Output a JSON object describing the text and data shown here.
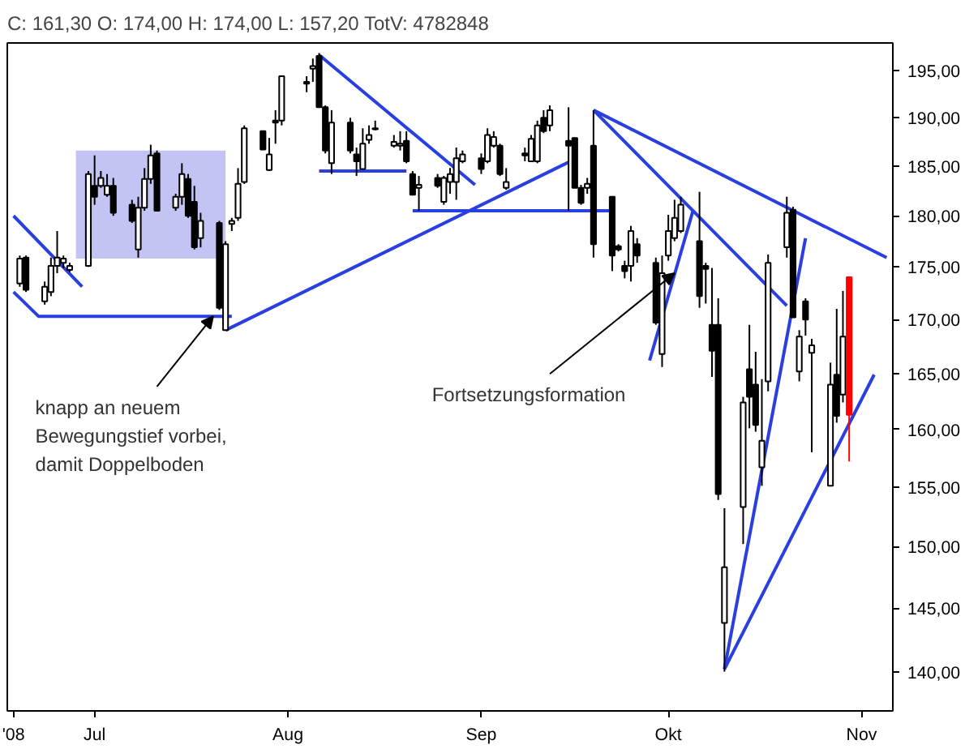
{
  "chart_data": {
    "type": "candlestick",
    "title": "C: 161,30 O: 174,00 H: 174,00 L: 157,20 TotV: 4782848",
    "x": [
      "2008-06-19",
      "2008-06-20",
      "2008-06-23",
      "2008-06-24",
      "2008-06-25",
      "2008-06-26",
      "2008-06-27",
      "2008-06-30",
      "2008-07-01",
      "2008-07-02",
      "2008-07-03",
      "2008-07-04",
      "2008-07-07",
      "2008-07-08",
      "2008-07-09",
      "2008-07-10",
      "2008-07-11",
      "2008-07-14",
      "2008-07-15",
      "2008-07-16",
      "2008-07-17",
      "2008-07-18",
      "2008-07-21",
      "2008-07-22",
      "2008-07-23",
      "2008-07-24",
      "2008-07-25",
      "2008-07-28",
      "2008-07-29",
      "2008-07-30",
      "2008-07-31",
      "2008-08-04",
      "2008-08-05",
      "2008-08-06",
      "2008-08-07",
      "2008-08-08",
      "2008-08-11",
      "2008-08-12",
      "2008-08-13",
      "2008-08-14",
      "2008-08-15",
      "2008-08-18",
      "2008-08-19",
      "2008-08-20",
      "2008-08-21",
      "2008-08-22",
      "2008-08-25",
      "2008-08-26",
      "2008-08-27",
      "2008-08-28",
      "2008-08-29",
      "2008-09-01",
      "2008-09-02",
      "2008-09-03",
      "2008-09-04",
      "2008-09-05",
      "2008-09-08",
      "2008-09-09",
      "2008-09-10",
      "2008-09-11",
      "2008-09-12",
      "2008-09-15",
      "2008-09-16",
      "2008-09-17",
      "2008-09-18",
      "2008-09-19",
      "2008-09-22",
      "2008-09-23",
      "2008-09-24",
      "2008-09-25",
      "2008-09-26",
      "2008-09-29",
      "2008-09-30",
      "2008-10-01",
      "2008-10-02",
      "2008-10-03",
      "2008-10-06",
      "2008-10-07",
      "2008-10-08",
      "2008-10-09",
      "2008-10-10",
      "2008-10-13",
      "2008-10-14",
      "2008-10-15",
      "2008-10-16",
      "2008-10-17",
      "2008-10-20",
      "2008-10-21",
      "2008-10-22",
      "2008-10-23",
      "2008-10-24",
      "2008-10-27",
      "2008-10-28",
      "2008-10-29",
      "2008-10-30"
    ],
    "ohlc": [
      [
        173.4,
        176.1,
        173.1,
        175.8
      ],
      [
        175.9,
        176.1,
        172.6,
        172.8
      ],
      [
        171.7,
        173.6,
        171.4,
        173.1
      ],
      [
        172.6,
        175.9,
        172.2,
        175.1
      ],
      [
        175.1,
        178.5,
        174.4,
        175.9
      ],
      [
        175.4,
        176.1,
        174.9,
        175.8
      ],
      [
        174.7,
        175.4,
        174.5,
        175.1
      ],
      [
        175.1,
        184.5,
        175,
        184.2
      ],
      [
        183,
        186.1,
        181.1,
        181.9
      ],
      [
        183,
        184.5,
        182.8,
        183.8
      ],
      [
        182.1,
        184.2,
        181.9,
        183
      ],
      [
        183,
        183.8,
        180,
        180.3
      ],
      [
        181.1,
        181.6,
        179.3,
        179.5
      ],
      [
        176.7,
        181.9,
        175.9,
        180.8
      ],
      [
        180.8,
        184.8,
        180.5,
        183.7
      ],
      [
        183.7,
        187.2,
        183.2,
        186.1
      ],
      [
        186.3,
        186.6,
        180.5,
        180.5
      ],
      [
        180.8,
        182.2,
        180.5,
        181.9
      ],
      [
        181.9,
        185.3,
        181.1,
        184.2
      ],
      [
        183.7,
        184.2,
        179.8,
        180
      ],
      [
        181.4,
        183,
        176.7,
        176.9
      ],
      [
        177.8,
        180.3,
        176.9,
        179.5
      ],
      [
        179.3,
        179.5,
        170.9,
        171.1
      ],
      [
        169,
        177.5,
        169,
        177.2
      ],
      [
        179.2,
        179.8,
        178.5,
        179.5
      ],
      [
        179.8,
        184.8,
        179.5,
        183.2
      ],
      [
        183.4,
        189.2,
        183.2,
        188.9
      ],
      [
        188.6,
        188.6,
        186.7,
        186.7
      ],
      [
        184.6,
        187.9,
        184.5,
        186.2
      ],
      [
        189.7,
        190.8,
        187.3,
        189.5
      ],
      [
        189.7,
        194.4,
        189.2,
        194.4
      ],
      [
        193.8,
        194.4,
        192.7,
        193.6
      ],
      [
        195.2,
        196.3,
        193.8,
        195.5
      ],
      [
        196.6,
        196.9,
        191.1,
        191.1
      ],
      [
        191.1,
        191.3,
        186.3,
        186.6
      ],
      [
        185.3,
        190.8,
        184.2,
        189.5
      ],
      [
        189.5,
        190,
        186.3,
        186.6
      ],
      [
        186.2,
        186.9,
        184,
        185.5
      ],
      [
        184.7,
        188.9,
        184.7,
        187.3
      ],
      [
        187.7,
        189.2,
        187.3,
        188.2
      ],
      [
        188.8,
        189.7,
        188.7,
        188.9
      ],
      [
        187.1,
        188.2,
        186.9,
        187.5
      ],
      [
        187.1,
        188.6,
        186.6,
        187.3
      ],
      [
        187.6,
        188.6,
        185.3,
        185.5
      ],
      [
        184.2,
        184.5,
        182.1,
        182.1
      ],
      [
        182.8,
        184,
        180.5,
        183.1
      ],
      [
        183.8,
        184.2,
        182.8,
        183
      ],
      [
        181.4,
        184,
        181.1,
        183.8
      ],
      [
        183.4,
        184.8,
        182.2,
        184.2
      ],
      [
        183.4,
        186.9,
        181.6,
        185.8
      ],
      [
        185.5,
        186.6,
        185.3,
        186.2
      ],
      [
        185.8,
        186.3,
        184.2,
        184.7
      ],
      [
        185.5,
        188.9,
        185.3,
        188.2
      ],
      [
        187.1,
        188.6,
        186.9,
        188
      ],
      [
        187.1,
        187.3,
        184,
        184.2
      ],
      [
        182.8,
        184.8,
        182.6,
        183.4
      ],
      [
        186.3,
        186.9,
        185.5,
        186.1
      ],
      [
        185.5,
        188.2,
        185.5,
        187.8
      ],
      [
        185.5,
        189.7,
        185.3,
        189.2
      ],
      [
        190,
        190.8,
        188.4,
        188.6
      ],
      [
        189.2,
        191.3,
        188.6,
        190.8
      ],
      [
        187.6,
        191.1,
        180.5,
        187.1
      ],
      [
        187.9,
        187.9,
        182.8,
        182.8
      ],
      [
        182.8,
        183.1,
        181.1,
        181.3
      ],
      [
        182.8,
        183.8,
        182.2,
        183.2
      ],
      [
        187.1,
        190.8,
        175.9,
        177.2
      ],
      [
        181.9,
        181.9,
        174.6,
        176.1
      ],
      [
        177,
        177.2,
        176.5,
        176.7
      ],
      [
        175.1,
        175.6,
        173.9,
        174.6
      ],
      [
        175.1,
        179,
        173.6,
        178.5
      ],
      [
        177.2,
        177.8,
        175.4,
        176.1
      ],
      [
        175.4,
        175.9,
        169.5,
        169.7
      ],
      [
        166.8,
        176.1,
        165.6,
        174.4
      ],
      [
        176.1,
        180.1,
        175.6,
        178.5
      ],
      [
        177.8,
        181.6,
        177.5,
        179.8
      ],
      [
        178.5,
        181.9,
        178.3,
        181.1
      ],
      [
        177.5,
        182.4,
        171.1,
        172.2
      ],
      [
        175.1,
        175.4,
        171.5,
        174.8
      ],
      [
        169.5,
        174.9,
        164.7,
        167.1
      ],
      [
        169.5,
        172,
        153.9,
        154.4
      ],
      [
        143.8,
        153.2,
        140,
        148.3
      ],
      [
        153.3,
        162.9,
        150.2,
        162.4
      ],
      [
        165.4,
        169.5,
        160.1,
        162.9
      ],
      [
        164,
        167,
        159.8,
        160.4
      ],
      [
        156.7,
        164.5,
        155.1,
        159
      ],
      [
        164.3,
        176.2,
        163.4,
        175.4
      ],
      [
        176.9,
        181.9,
        175.9,
        180.3
      ],
      [
        180.6,
        180.9,
        170.2,
        170.2
      ],
      [
        165.2,
        169,
        164.3,
        168.4
      ],
      [
        171.7,
        172,
        168.5,
        170
      ],
      [
        166.9,
        168.2,
        158,
        167.6
      ],
      [
        155.1,
        166,
        155.1,
        164
      ],
      [
        164.9,
        171,
        160.6,
        161.2
      ],
      [
        163.1,
        172.7,
        162.4,
        168.4
      ],
      [
        174,
        174,
        157.2,
        161.3
      ]
    ],
    "colors": [
      "#ffffff",
      "#000000",
      "#ffffff",
      "#ffffff",
      "#ffffff",
      "#ffffff",
      "#ffffff",
      "#ffffff",
      "#000000",
      "#ffffff",
      "#ffffff",
      "#000000",
      "#000000",
      "#ffffff",
      "#ffffff",
      "#ffffff",
      "#000000",
      "#ffffff",
      "#ffffff",
      "#000000",
      "#000000",
      "#ffffff",
      "#000000",
      "#ffffff",
      "#ffffff",
      "#ffffff",
      "#ffffff",
      "#000000",
      "#ffffff",
      "#000000",
      "#ffffff",
      "#000000",
      "#ffffff",
      "#000000",
      "#000000",
      "#ffffff",
      "#000000",
      "#000000",
      "#ffffff",
      "#ffffff",
      "#ffffff",
      "#ffffff",
      "#ffffff",
      "#000000",
      "#000000",
      "#ffffff",
      "#000000",
      "#ffffff",
      "#ffffff",
      "#ffffff",
      "#ffffff",
      "#000000",
      "#ffffff",
      "#ffffff",
      "#000000",
      "#ffffff",
      "#000000",
      "#ffffff",
      "#ffffff",
      "#000000",
      "#ffffff",
      "#000000",
      "#000000",
      "#000000",
      "#ffffff",
      "#000000",
      "#000000",
      "#000000",
      "#000000",
      "#ffffff",
      "#000000",
      "#000000",
      "#ffffff",
      "#ffffff",
      "#ffffff",
      "#ffffff",
      "#000000",
      "#000000",
      "#000000",
      "#000000",
      "#ffffff",
      "#ffffff",
      "#000000",
      "#000000",
      "#ffffff",
      "#ffffff",
      "#ffffff",
      "#000000",
      "#ffffff",
      "#000000",
      "#ffffff",
      "#ffffff",
      "#000000",
      "#ffffff",
      "#ff0000"
    ],
    "series": [
      {
        "type": "bar",
        "color": "#c4c4f4",
        "x": [
          "2008-07-10"
        ],
        "values": [
          10.8
        ],
        "base": [
          175.8
        ]
      },
      {
        "type": "line",
        "color": "#2a3fe0",
        "x": [
          "2008-06-18",
          "2008-06-29"
        ],
        "values": [
          180,
          173.1
        ]
      },
      {
        "type": "line",
        "color": "#2a3fe0",
        "x": [
          "2008-06-18",
          "2008-06-22",
          "2008-07-23"
        ],
        "values": [
          172.6,
          170.3,
          170.3
        ]
      },
      {
        "type": "line",
        "color": "#2a3fe0",
        "x": [
          "2008-07-22",
          "2008-09-15"
        ],
        "values": [
          169,
          185.4
        ]
      },
      {
        "type": "line",
        "color": "#2a3fe0",
        "x": [
          "2008-08-06",
          "2008-08-31"
        ],
        "values": [
          196.7,
          183.1
        ]
      },
      {
        "type": "line",
        "color": "#2a3fe0",
        "x": [
          "2008-08-06",
          "2008-08-20"
        ],
        "values": [
          184.5,
          184.5
        ]
      },
      {
        "type": "line",
        "color": "#2a3fe0",
        "x": [
          "2008-08-21",
          "2008-09-22"
        ],
        "values": [
          180.5,
          180.5
        ]
      },
      {
        "type": "line",
        "color": "#2a3fe0",
        "x": [
          "2008-09-19",
          "2008-11-05"
        ],
        "values": [
          190.8,
          175.9
        ]
      },
      {
        "type": "line",
        "color": "#2a3fe0",
        "x": [
          "2008-09-19",
          "2008-10-20"
        ],
        "values": [
          190.8,
          171.3
        ]
      },
      {
        "type": "line",
        "color": "#2a3fe0",
        "x": [
          "2008-09-28",
          "2008-10-05"
        ],
        "values": [
          166.2,
          180.6
        ]
      },
      {
        "type": "line",
        "color": "#2a3fe0",
        "x": [
          "2008-10-10",
          "2008-10-23"
        ],
        "values": [
          140.2,
          177.8
        ]
      },
      {
        "type": "line",
        "color": "#2a3fe0",
        "x": [
          "2008-10-10",
          "2008-11-03"
        ],
        "values": [
          140.2,
          164.9
        ]
      }
    ],
    "annotations": [
      {
        "text": "knapp an neuem\nBewegungstief vorbei,\ndamit Doppelboden",
        "x": "2008-07-20",
        "y": 170.3
      },
      {
        "text": "Fortsetzungsformation",
        "x": "2008-10-02",
        "y": 174.4
      }
    ],
    "log": true,
    "xlim": [
      "2008-06-17",
      "2008-11-06"
    ],
    "xticks": [
      {
        "value": "2008-06-18",
        "label": "'08"
      },
      {
        "value": "2008-07-01",
        "label": "Jul"
      },
      {
        "value": "2008-08-01",
        "label": "Aug"
      },
      {
        "value": "2008-09-01",
        "label": "Sep"
      },
      {
        "value": "2008-10-01",
        "label": "Okt"
      },
      {
        "value": "2008-11-01",
        "label": "Nov"
      }
    ],
    "ylim": [
      137,
      198
    ],
    "yticks": [
      {
        "value": 140,
        "label": "140,00"
      },
      {
        "value": 145,
        "label": "145,00"
      },
      {
        "value": 150,
        "label": "150,00"
      },
      {
        "value": 155,
        "label": "155,00"
      },
      {
        "value": 160,
        "label": "160,00"
      },
      {
        "value": 165,
        "label": "165,00"
      },
      {
        "value": 170,
        "label": "170,00"
      },
      {
        "value": 175,
        "label": "175,00"
      },
      {
        "value": 180,
        "label": "180,00"
      },
      {
        "value": 185,
        "label": "185,00"
      },
      {
        "value": 190,
        "label": "190,00"
      },
      {
        "value": 195,
        "label": "195,00"
      }
    ]
  }
}
